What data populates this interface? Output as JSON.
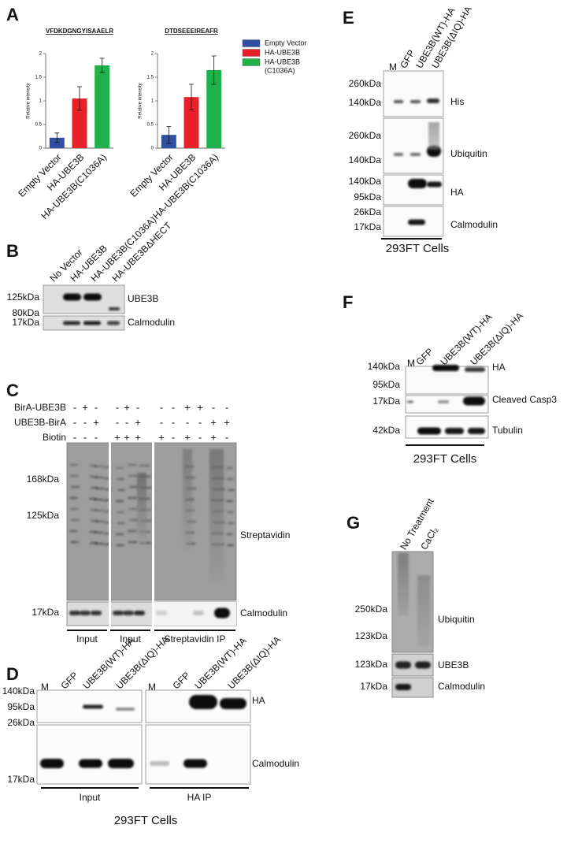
{
  "chart_data": [
    {
      "type": "bar",
      "title": "VFDKDGNGYISAAELR",
      "y_label": "Relative intensity",
      "categories": [
        "Empty Vector",
        "HA-UBE3B",
        "HA-UBE3B(C1036A)"
      ],
      "values": [
        0.22,
        1.05,
        1.75
      ],
      "errors": [
        0.1,
        0.25,
        0.15
      ],
      "colors": [
        "#2e4fa3",
        "#e8202a",
        "#1fb14b"
      ],
      "ylim": [
        0,
        2
      ],
      "yticks": [
        0,
        0.5,
        1,
        1.5,
        2
      ]
    },
    {
      "type": "bar",
      "title": "DTDSEEEIREAFR",
      "y_label": "Relative intensity",
      "categories": [
        "Empty Vector",
        "HA-UBE3B",
        "HA-UBE3B(C1036A)"
      ],
      "values": [
        0.28,
        1.08,
        1.65
      ],
      "errors": [
        0.18,
        0.27,
        0.3
      ],
      "colors": [
        "#2e4fa3",
        "#e8202a",
        "#1fb14b"
      ],
      "ylim": [
        0,
        2
      ],
      "yticks": [
        0,
        0.5,
        1,
        1.5,
        2
      ]
    }
  ],
  "panels": {
    "A": {
      "label": "A",
      "legend": [
        {
          "lines": [
            "Empty Vector"
          ],
          "color": "#2e4fa3"
        },
        {
          "lines": [
            "HA-UBE3B"
          ],
          "color": "#e8202a"
        },
        {
          "lines": [
            "HA-UBE3B",
            "(C1036A)"
          ],
          "color": "#1fb14b"
        }
      ]
    },
    "B": {
      "label": "B",
      "lanes": [
        "No Vector",
        "HA-UBE3B",
        "HA-UBE3B(C1036A)",
        "HA-UBE3BΔHECT"
      ],
      "markers": [
        "125kDa",
        "80kDa",
        "17kDa"
      ],
      "proteins": [
        "UBE3B",
        "Calmodulin"
      ]
    },
    "C": {
      "label": "C",
      "rows": [
        {
          "label": "BirA-UBE3B",
          "signs": [
            "-",
            "+",
            "-",
            "-",
            "+",
            "-",
            "-",
            "-",
            "+",
            "+",
            "-",
            "-"
          ]
        },
        {
          "label": "UBE3B-BirA",
          "signs": [
            "-",
            "-",
            "+",
            "-",
            "-",
            "+",
            "-",
            "-",
            "-",
            "-",
            "+",
            "+"
          ]
        },
        {
          "label": "Biotin",
          "signs": [
            "-",
            "-",
            "-",
            "+",
            "+",
            "+",
            "+",
            "-",
            "+",
            "-",
            "+",
            "-"
          ]
        }
      ],
      "markers": [
        "168kDa",
        "125kDa",
        "17kDa"
      ],
      "proteins": [
        "Streptavidin",
        "Calmodulin"
      ],
      "groups": [
        "Input",
        "Input",
        "Streptavidin IP"
      ]
    },
    "D": {
      "label": "D",
      "lanes": [
        "M",
        "GFP",
        "UBE3B(WT)-HA",
        "UBE3B(ΔIQ)-HA",
        "M",
        "GFP",
        "UBE3B(WT)-HA",
        "UBE3B(ΔIQ)-HA"
      ],
      "markers": [
        "140kDa",
        "95kDa",
        "26kDa",
        "17kDa"
      ],
      "proteins": [
        "HA",
        "Calmodulin"
      ],
      "groups": [
        "Input",
        "HA IP"
      ],
      "footer": "293FT Cells"
    },
    "E": {
      "label": "E",
      "lanes": [
        "M",
        "GFP",
        "UBE3B(WT)-HA",
        "UBE3B(ΔIQ)-HA"
      ],
      "markers": [
        "260kDa",
        "140kDa",
        "260kDa",
        "140kDa",
        "140kDa",
        "95kDa",
        "26kDa",
        "17kDa"
      ],
      "proteins": [
        "His",
        "Ubiquitin",
        "HA",
        "Calmodulin"
      ],
      "footer": "293FT Cells"
    },
    "F": {
      "label": "F",
      "lanes": [
        "M",
        "GFP",
        "UBE3B(WT)-HA",
        "UBE3B(ΔIQ)-HA"
      ],
      "markers": [
        "140kDa",
        "95kDa",
        "17kDa",
        "42kDa"
      ],
      "proteins": [
        "HA",
        "Cleaved Casp3",
        "Tubulin"
      ],
      "footer": "293FT Cells"
    },
    "G": {
      "label": "G",
      "lanes": [
        "No Treatment",
        "CaCl₂"
      ],
      "markers": [
        "250kDa",
        "123kDa",
        "123kDa",
        "17kDa"
      ],
      "proteins": [
        "Ubiquitin",
        "UBE3B",
        "Calmodulin"
      ]
    }
  }
}
